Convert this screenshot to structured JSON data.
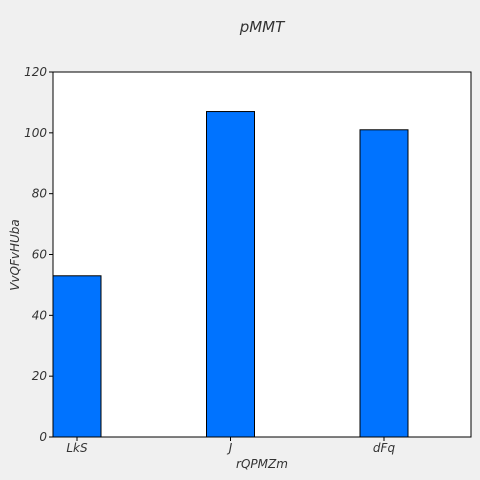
{
  "chart_data": {
    "type": "bar",
    "title": "pMMT",
    "xlabel": "rQPMZm",
    "ylabel": "VvQFvHUba",
    "categories": [
      "LkS",
      "J",
      "dFq"
    ],
    "values": [
      53,
      107,
      101
    ],
    "ylim": [
      0,
      120
    ],
    "yticks": [
      0,
      20,
      40,
      60,
      80,
      100,
      120
    ],
    "grid": false,
    "legend": "none",
    "colors": {
      "bar_fill": "#0073ff",
      "bar_stroke": "#000000",
      "background": "#f0f0f0",
      "plot_background": "#ffffff",
      "text": "#333333"
    }
  }
}
